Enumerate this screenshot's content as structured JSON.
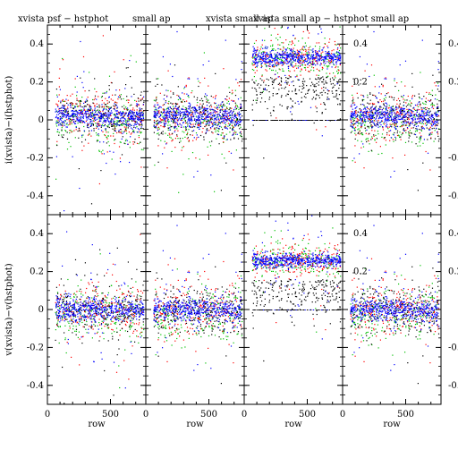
{
  "chart_data": {
    "type": "scatter",
    "layout": "2x4 grid",
    "xlim": [
      0,
      780
    ],
    "ylim": [
      -0.5,
      0.5
    ],
    "x_ticks": [
      0,
      500
    ],
    "y_ticks": [
      -0.4,
      -0.2,
      0,
      0.2,
      0.4
    ],
    "y_tick_labels": [
      "-0.4",
      "-0.2",
      "0",
      "0.2",
      "0.4"
    ],
    "x_tick_labels": [
      "0",
      "500"
    ],
    "xlabel": "row",
    "row_ylabels": [
      "i(xvista)−i(hstphot)",
      "v(xvista)−v(hstphot)"
    ],
    "column_titles": [
      "xvista psf − hstphot",
      "small ap",
      "xvista small ap",
      "xvista small ap − hstphot small ap"
    ],
    "colors": {
      "red": "#ff0000",
      "green": "#00c000",
      "blue": "#0000ff",
      "black": "#000000"
    },
    "panels": [
      {
        "row": 0,
        "col": 0,
        "offset": 0.02,
        "trend": -2e-05,
        "scatter": 0.05
      },
      {
        "row": 0,
        "col": 1,
        "offset": 0.02,
        "trend": -2e-05,
        "scatter": 0.05
      },
      {
        "row": 0,
        "col": 2,
        "offset": 0.33,
        "trend": 0.0,
        "scatter": 0.035,
        "zero_line": true
      },
      {
        "row": 0,
        "col": 3,
        "offset": 0.02,
        "trend": -2e-05,
        "scatter": 0.05
      },
      {
        "row": 1,
        "col": 0,
        "offset": 0.0,
        "trend": -1e-05,
        "scatter": 0.05
      },
      {
        "row": 1,
        "col": 1,
        "offset": 0.0,
        "trend": -1e-05,
        "scatter": 0.05
      },
      {
        "row": 1,
        "col": 2,
        "offset": 0.26,
        "trend": 0.0,
        "scatter": 0.03,
        "zero_line": true
      },
      {
        "row": 1,
        "col": 3,
        "offset": 0.0,
        "trend": -1e-05,
        "scatter": 0.05
      }
    ]
  }
}
